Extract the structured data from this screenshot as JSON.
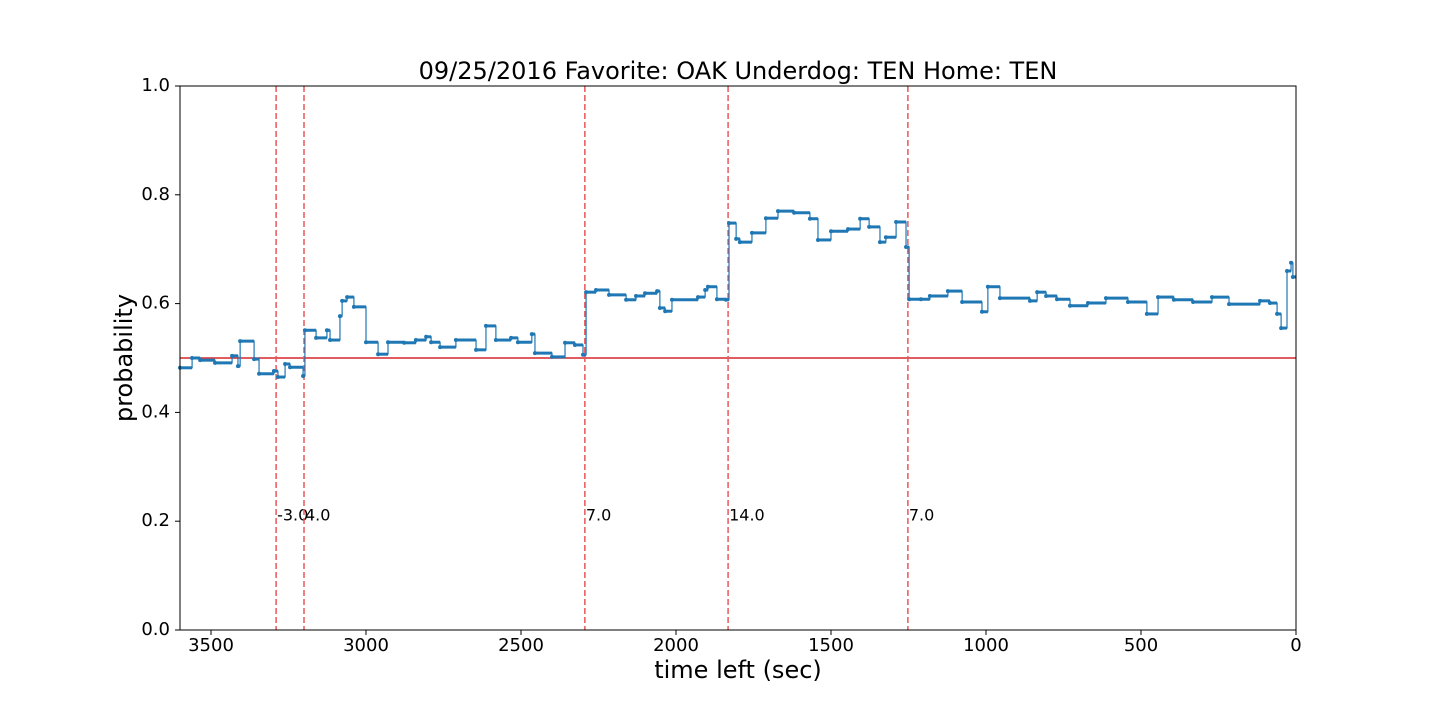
{
  "chart_data": {
    "type": "line",
    "title": "09/25/2016 Favorite: OAK Underdog: TEN Home: TEN",
    "x_label": "time left (sec)",
    "y_label": "probability",
    "xlim": [
      3600,
      0
    ],
    "ylim": [
      0,
      1
    ],
    "xticks": [
      3500,
      3000,
      2500,
      2000,
      1500,
      1000,
      500,
      0
    ],
    "yticks": [
      {
        "value": 0,
        "label": "0.0"
      },
      0.2,
      0.4,
      0.6,
      0.8,
      {
        "value": 1,
        "label": "1.0"
      }
    ],
    "drawstyle": "steps-post",
    "series": [
      {
        "name": "probability",
        "color": "#1f77b4",
        "x": [
          3600,
          3561,
          3535,
          3487,
          3432,
          3413,
          3406,
          3361,
          3345,
          3297,
          3284,
          3261,
          3245,
          3203,
          3197,
          3161,
          3126,
          3116,
          3084,
          3077,
          3061,
          3039,
          3000,
          2961,
          2929,
          2877,
          2839,
          2806,
          2790,
          2761,
          2710,
          2645,
          2613,
          2581,
          2532,
          2510,
          2465,
          2455,
          2400,
          2358,
          2326,
          2300,
          2290,
          2258,
          2216,
          2161,
          2129,
          2100,
          2061,
          2052,
          2035,
          2013,
          1929,
          1906,
          1897,
          1868,
          1839,
          1829,
          1806,
          1794,
          1755,
          1710,
          1671,
          1619,
          1568,
          1542,
          1500,
          1445,
          1406,
          1377,
          1342,
          1323,
          1290,
          1258,
          1248,
          1210,
          1181,
          1123,
          1077,
          1013,
          994,
          955,
          858,
          835,
          806,
          771,
          729,
          671,
          613,
          542,
          481,
          445,
          394,
          332,
          271,
          216,
          116,
          84,
          61,
          48,
          29,
          16,
          10
        ],
        "values": [
          0.482,
          0.5,
          0.496,
          0.491,
          0.504,
          0.485,
          0.531,
          0.498,
          0.471,
          0.476,
          0.465,
          0.489,
          0.483,
          0.467,
          0.551,
          0.537,
          0.551,
          0.533,
          0.577,
          0.605,
          0.612,
          0.594,
          0.529,
          0.507,
          0.529,
          0.528,
          0.533,
          0.539,
          0.529,
          0.52,
          0.533,
          0.515,
          0.559,
          0.533,
          0.537,
          0.529,
          0.544,
          0.509,
          0.502,
          0.528,
          0.524,
          0.506,
          0.621,
          0.625,
          0.616,
          0.607,
          0.614,
          0.619,
          0.623,
          0.592,
          0.586,
          0.607,
          0.612,
          0.625,
          0.631,
          0.608,
          0.607,
          0.748,
          0.719,
          0.713,
          0.73,
          0.757,
          0.77,
          0.767,
          0.756,
          0.717,
          0.733,
          0.737,
          0.756,
          0.741,
          0.713,
          0.722,
          0.75,
          0.704,
          0.608,
          0.608,
          0.614,
          0.623,
          0.603,
          0.585,
          0.631,
          0.61,
          0.605,
          0.621,
          0.614,
          0.608,
          0.596,
          0.601,
          0.61,
          0.603,
          0.581,
          0.612,
          0.607,
          0.603,
          0.612,
          0.599,
          0.605,
          0.601,
          0.581,
          0.555,
          0.66,
          0.675,
          0.649
        ]
      }
    ],
    "hline": {
      "y": 0.5,
      "color": "#d62728"
    },
    "vlines": {
      "color": "#e8585a",
      "items": [
        {
          "x": 3290,
          "label": "-3.0"
        },
        {
          "x": 3200,
          "label": "4.0"
        },
        {
          "x": 2294,
          "label": "7.0"
        },
        {
          "x": 1832,
          "label": "14.0"
        },
        {
          "x": 1252,
          "label": "7.0"
        }
      ]
    }
  }
}
